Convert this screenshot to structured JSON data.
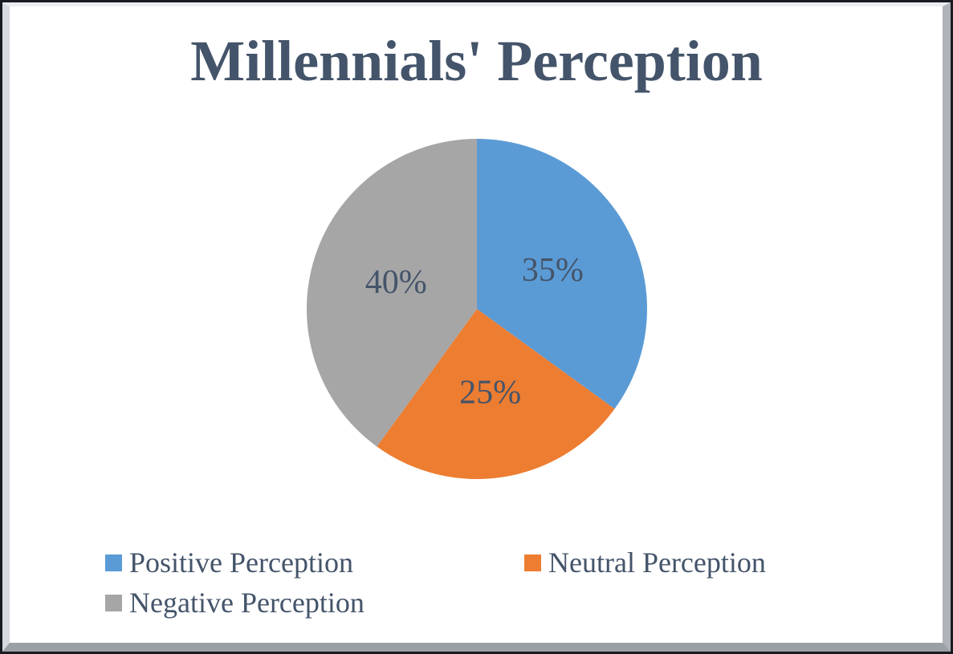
{
  "title": "Millennials' Perception",
  "text_color": "#44546A",
  "chart_data": {
    "type": "pie",
    "title": "Millennials' Perception",
    "start_angle_deg": 0,
    "direction": "clockwise",
    "data_labels": "inside",
    "legend_position": "bottom",
    "slices": [
      {
        "label": "Positive Perception",
        "value": 35,
        "display": "35%",
        "color": "#5B9BD5"
      },
      {
        "label": "Neutral Perception",
        "value": 25,
        "display": "25%",
        "color": "#ED7D31"
      },
      {
        "label": "Negative Perception",
        "value": 40,
        "display": "40%",
        "color": "#A6A6A6"
      }
    ]
  },
  "legend": {
    "items": [
      {
        "label": "Positive Perception",
        "color": "#5B9BD5"
      },
      {
        "label": "Neutral Perception",
        "color": "#ED7D31"
      },
      {
        "label": "Negative Perception",
        "color": "#A6A6A6"
      }
    ]
  }
}
